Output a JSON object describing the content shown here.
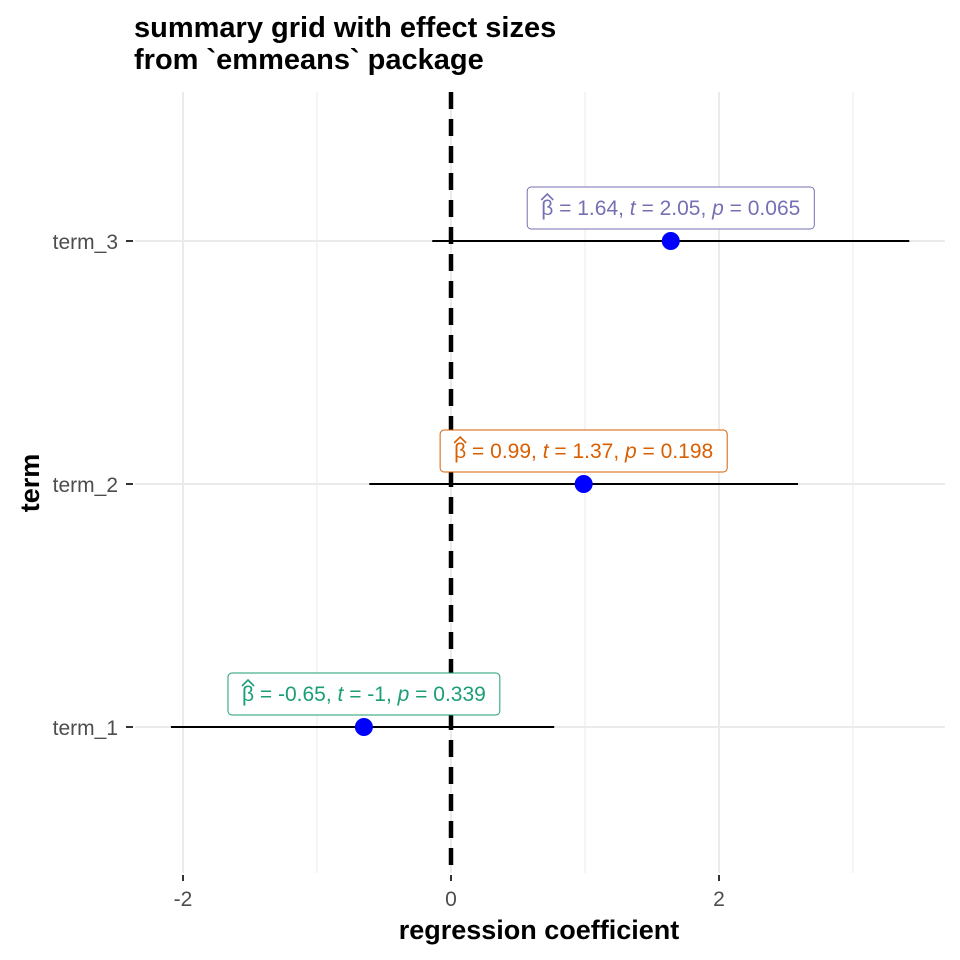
{
  "chart_data": {
    "type": "scatter",
    "title": [
      "summary grid with effect sizes",
      "from `emmeans` package"
    ],
    "xlabel": "regression coefficient",
    "ylabel": "term",
    "xlim": [
      -2.1,
      3.7
    ],
    "x_ticks": [
      {
        "value": -2,
        "label": "-2"
      },
      {
        "value": 0,
        "label": "0"
      },
      {
        "value": 2,
        "label": "2"
      }
    ],
    "x_minor_ticks": [
      -1,
      1,
      3
    ],
    "reference_line": {
      "x": 0,
      "style": "dashed"
    },
    "grid": true,
    "point_color": "#0000ff",
    "terms": [
      {
        "label": "term_1",
        "estimate": -0.65,
        "conf_low": -2.09,
        "conf_high": 0.77,
        "t": "-1",
        "p": "0.339",
        "beta_text": "-0.65",
        "color": "#1b9e77"
      },
      {
        "label": "term_2",
        "estimate": 0.99,
        "conf_low": -0.61,
        "conf_high": 2.59,
        "t": "1.37",
        "p": "0.198",
        "beta_text": "0.99",
        "color": "#d95f02"
      },
      {
        "label": "term_3",
        "estimate": 1.64,
        "conf_low": -0.14,
        "conf_high": 3.42,
        "t": "2.05",
        "p": "0.065",
        "beta_text": "1.64",
        "color": "#7570b3"
      }
    ]
  }
}
